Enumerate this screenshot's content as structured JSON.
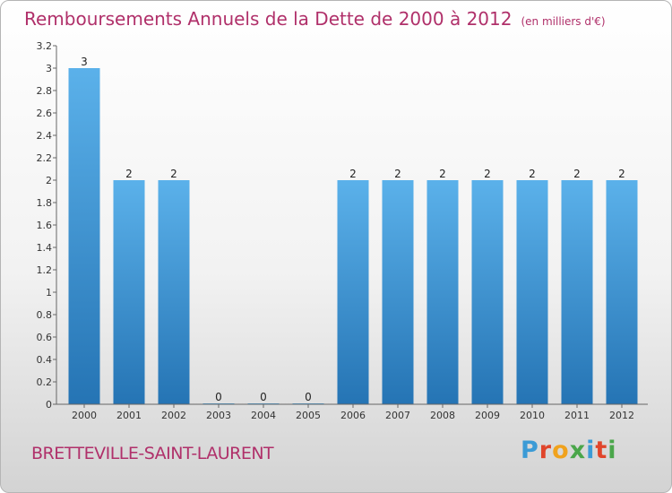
{
  "title": "Remboursements Annuels de la Dette de 2000 à 2012",
  "unit": "(en milliers d'€)",
  "commune": "BRETTEVILLE-SAINT-LAURENT",
  "logo": {
    "letters": [
      "P",
      "r",
      "o",
      "x",
      "i",
      "t",
      "i"
    ],
    "colors": [
      "#3b9bd6",
      "#e0452b",
      "#f0a21d",
      "#4aa64a",
      "#3b9bd6",
      "#e0452b",
      "#4aa64a"
    ]
  },
  "colors": {
    "bar_top": "#5bb1ea",
    "bar_bottom": "#2574b4",
    "title": "#b0306a"
  },
  "chart_data": {
    "type": "bar",
    "title": "Remboursements Annuels de la Dette de 2000 à 2012",
    "xlabel": "",
    "ylabel": "",
    "categories": [
      "2000",
      "2001",
      "2002",
      "2003",
      "2004",
      "2005",
      "2006",
      "2007",
      "2008",
      "2009",
      "2010",
      "2011",
      "2012"
    ],
    "values": [
      3,
      2,
      2,
      0,
      0,
      0,
      2,
      2,
      2,
      2,
      2,
      2,
      2
    ],
    "data_labels": [
      "3",
      "2",
      "2",
      "0",
      "0",
      "0",
      "2",
      "2",
      "2",
      "2",
      "2",
      "2",
      "2"
    ],
    "ylim": [
      0,
      3.2
    ],
    "yticks": [
      "0",
      "0.2",
      "0.4",
      "0.6",
      "0.8",
      "1",
      "1.2",
      "1.4",
      "1.6",
      "1.8",
      "2",
      "2.2",
      "2.4",
      "2.6",
      "2.8",
      "3",
      "3.2"
    ],
    "ytick_values": [
      0,
      0.2,
      0.4,
      0.6,
      0.8,
      1,
      1.2,
      1.4,
      1.6,
      1.8,
      2,
      2.2,
      2.4,
      2.6,
      2.8,
      3,
      3.2
    ],
    "grid": false,
    "legend": "none"
  }
}
